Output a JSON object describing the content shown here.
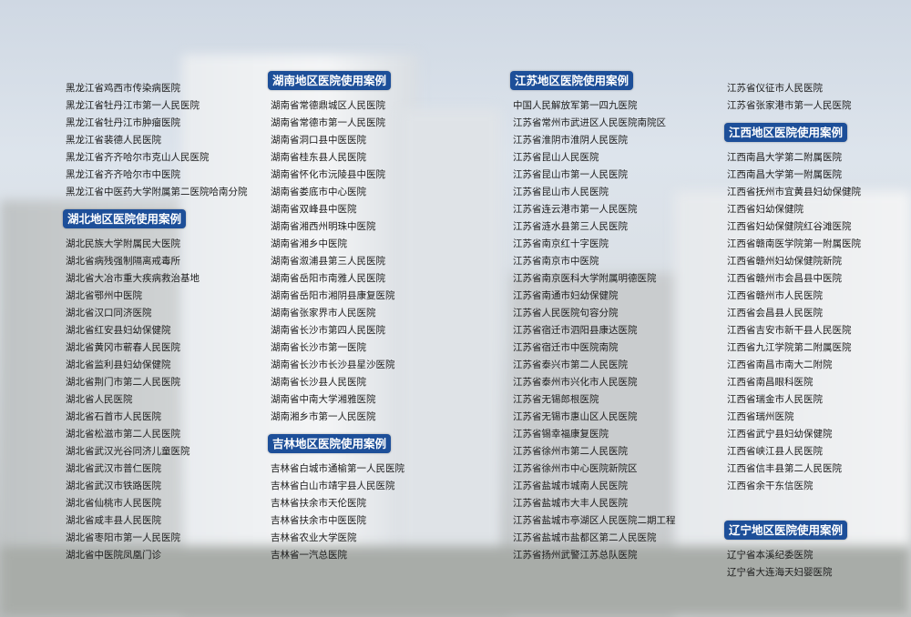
{
  "colors": {
    "heading_bg": "#1d4f99",
    "heading_text": "#ffffff",
    "text": "#1c1c1c"
  },
  "columns": [
    {
      "blocks": [
        {
          "heading": null,
          "items": [
            "黑龙江省鸡西市传染病医院",
            "黑龙江省牡丹江市第一人民医院",
            "黑龙江省牡丹江市肿瘤医院",
            "黑龙江省裴德人民医院",
            "黑龙江省齐齐哈尔市克山人民医院",
            "黑龙江省齐齐哈尔市中医院",
            "黑龙江省中医药大学附属第二医院哈南分院"
          ]
        },
        {
          "heading": "湖北地区医院使用案例",
          "items": [
            "湖北民族大学附属民大医院",
            "湖北省病残强制隔离戒毒所",
            "湖北省大冶市重大疾病救治基地",
            "湖北省鄂州中医院",
            "湖北省汉口同济医院",
            "湖北省红安县妇幼保健院",
            "湖北省黄冈市蕲春人民医院",
            "湖北省监利县妇幼保健院",
            "湖北省荆门市第二人民医院",
            "湖北省人民医院",
            "湖北省石首市人民医院",
            "湖北省松滋市第二人民医院",
            "湖北省武汉光谷同济儿童医院",
            "湖北省武汉市普仁医院",
            "湖北省武汉市铁路医院",
            "湖北省仙桃市人民医院",
            "湖北省咸丰县人民医院",
            "湖北省枣阳市第一人民医院",
            "湖北省中医院凤凰门诊"
          ]
        }
      ]
    },
    {
      "blocks": [
        {
          "heading": "湖南地区医院使用案例",
          "items": [
            "湖南省常德鼎城区人民医院",
            "湖南省常德市第一人民医院",
            "湖南省洞口县中医医院",
            "湖南省桂东县人民医院",
            "湖南省怀化市沅陵县中医院",
            "湖南省娄底市中心医院",
            "湖南省双峰县中医院",
            "湖南省湘西州明珠中医院",
            "湖南省湘乡中医院",
            "湖南省溆浦县第三人民医院",
            "湖南省岳阳市南雅人民医院",
            "湖南省岳阳市湘阴县康复医院",
            "湖南省张家界市人民医院",
            "湖南省长沙市第四人民医院",
            "湖南省长沙市第一医院",
            "湖南省长沙市长沙县星沙医院",
            "湖南省长沙县人民医院",
            "湖南省中南大学湘雅医院",
            "湖南湘乡市第一人民医院"
          ]
        },
        {
          "heading": "吉林地区医院使用案例",
          "items": [
            "吉林省白城市通榆第一人民医院",
            "吉林省白山市靖宇县人民医院",
            "吉林省扶余市天伦医院",
            "吉林省扶余市中医医院",
            "吉林省农业大学医院",
            "吉林省一汽总医院"
          ]
        }
      ]
    },
    {
      "blocks": [
        {
          "heading": "江苏地区医院使用案例",
          "items": [
            "中国人民解放军第一四九医院",
            "江苏省常州市武进区人民医院南院区",
            "江苏省淮阴市淮阴人民医院",
            "江苏省昆山人民医院",
            "江苏省昆山市第一人民医院",
            "江苏省昆山市人民医院",
            "江苏省连云港市第一人民医院",
            "江苏省涟水县第三人民医院",
            "江苏省南京红十字医院",
            "江苏省南京市中医院",
            "江苏省南京医科大学附属明德医院",
            "江苏省南通市妇幼保健院",
            "江苏省人民医院句容分院",
            "江苏省宿迁市泗阳县康达医院",
            "江苏省宿迁市中医院南院",
            "江苏省泰兴市第二人民医院",
            "江苏省泰州市兴化市人民医院",
            "江苏省无锡郎根医院",
            "江苏省无锡市惠山区人民医院",
            "江苏省锡幸福康复医院",
            "江苏省徐州市第二人民医院",
            "江苏省徐州市中心医院新院区",
            "江苏省盐城市城南人民医院",
            "江苏省盐城市大丰人民医院",
            "江苏省盐城市亭湖区人民医院二期工程",
            "江苏省盐城市盐都区第二人民医院",
            "江苏省扬州武警江苏总队医院"
          ]
        }
      ]
    },
    {
      "blocks": [
        {
          "heading": null,
          "items": [
            "江苏省仪征市人民医院",
            "江苏省张家港市第一人民医院"
          ]
        },
        {
          "heading": "江西地区医院使用案例",
          "items": [
            "江西南昌大学第二附属医院",
            "江西南昌大学第一附属医院",
            "江西省抚州市宜黄县妇幼保健院",
            "江西省妇幼保健院",
            "江西省妇幼保健院红谷滩医院",
            "江西省赣南医学院第一附属医院",
            "江西省赣州妇幼保健院新院",
            "江西省赣州市会昌县中医院",
            "江西省赣州市人民医院",
            "江西省会昌县人民医院",
            "江西省吉安市新干县人民医院",
            "江西省九江学院第二附属医院",
            "江西省南昌市南大二附院",
            "江西省南昌眼科医院",
            "江西省瑞金市人民医院",
            "江西省瑞州医院",
            "江西省武宁县妇幼保健院",
            "江西省峡江县人民医院",
            "江西省信丰县第二人民医院",
            "江西省余干东信医院"
          ]
        },
        {
          "heading": "辽宁地区医院使用案例",
          "gap": true,
          "items": [
            "辽宁省本溪纪委医院",
            "辽宁省大连海天妇婴医院"
          ]
        }
      ]
    }
  ]
}
